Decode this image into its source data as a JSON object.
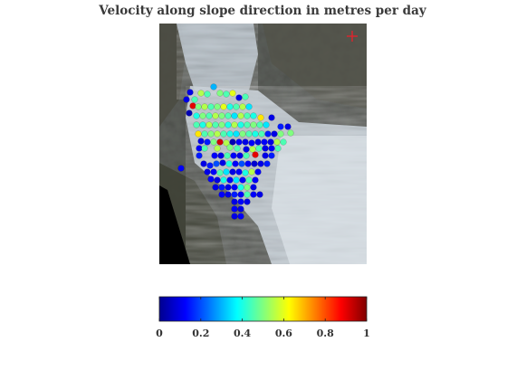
{
  "chart_data": {
    "type": "scatter",
    "title": "Velocity along slope direction in metres per day",
    "background": "satellite image of a glacier valley",
    "marker": {
      "symbol": "+",
      "color": "#e8202a"
    },
    "colormap": "jet",
    "colorbar": {
      "min": 0,
      "max": 1,
      "ticks": [
        "0",
        "0.2",
        "0.4",
        "0.6",
        "0.8",
        "1"
      ],
      "orientation": "horizontal",
      "position": "bottom"
    },
    "points": [
      {
        "x": 210,
        "y": 102,
        "v": 0.1
      },
      {
        "x": 215,
        "y": 110,
        "v": 0.45
      },
      {
        "x": 222,
        "y": 103,
        "v": 0.55
      },
      {
        "x": 229,
        "y": 104,
        "v": 0.45
      },
      {
        "x": 236,
        "y": 96,
        "v": 0.3
      },
      {
        "x": 243,
        "y": 103,
        "v": 0.5
      },
      {
        "x": 250,
        "y": 104,
        "v": 0.45
      },
      {
        "x": 257,
        "y": 103,
        "v": 0.6
      },
      {
        "x": 264,
        "y": 108,
        "v": 0.1
      },
      {
        "x": 271,
        "y": 107,
        "v": 0.45
      },
      {
        "x": 213,
        "y": 117,
        "v": 0.9
      },
      {
        "x": 206,
        "y": 110,
        "v": 0.1
      },
      {
        "x": 209,
        "y": 125,
        "v": 0.05
      },
      {
        "x": 219,
        "y": 118,
        "v": 0.5
      },
      {
        "x": 226,
        "y": 118,
        "v": 0.55
      },
      {
        "x": 233,
        "y": 118,
        "v": 0.45
      },
      {
        "x": 240,
        "y": 118,
        "v": 0.5
      },
      {
        "x": 247,
        "y": 118,
        "v": 0.6
      },
      {
        "x": 254,
        "y": 118,
        "v": 0.4
      },
      {
        "x": 261,
        "y": 118,
        "v": 0.45
      },
      {
        "x": 268,
        "y": 118,
        "v": 0.55
      },
      {
        "x": 275,
        "y": 118,
        "v": 0.35
      },
      {
        "x": 217,
        "y": 128,
        "v": 0.4
      },
      {
        "x": 224,
        "y": 128,
        "v": 0.5
      },
      {
        "x": 231,
        "y": 128,
        "v": 0.45
      },
      {
        "x": 238,
        "y": 128,
        "v": 0.55
      },
      {
        "x": 245,
        "y": 128,
        "v": 0.5
      },
      {
        "x": 252,
        "y": 128,
        "v": 0.45
      },
      {
        "x": 259,
        "y": 128,
        "v": 0.35
      },
      {
        "x": 266,
        "y": 128,
        "v": 0.55
      },
      {
        "x": 273,
        "y": 128,
        "v": 0.45
      },
      {
        "x": 280,
        "y": 128,
        "v": 0.4
      },
      {
        "x": 288,
        "y": 130,
        "v": 0.65
      },
      {
        "x": 217,
        "y": 138,
        "v": 0.45
      },
      {
        "x": 224,
        "y": 138,
        "v": 0.4
      },
      {
        "x": 231,
        "y": 138,
        "v": 0.55
      },
      {
        "x": 238,
        "y": 138,
        "v": 0.45
      },
      {
        "x": 245,
        "y": 138,
        "v": 0.5
      },
      {
        "x": 252,
        "y": 138,
        "v": 0.4
      },
      {
        "x": 259,
        "y": 138,
        "v": 0.55
      },
      {
        "x": 266,
        "y": 138,
        "v": 0.4
      },
      {
        "x": 273,
        "y": 138,
        "v": 0.45
      },
      {
        "x": 280,
        "y": 138,
        "v": 0.5
      },
      {
        "x": 287,
        "y": 138,
        "v": 0.45
      },
      {
        "x": 294,
        "y": 138,
        "v": 0.35
      },
      {
        "x": 300,
        "y": 130,
        "v": 0.1
      },
      {
        "x": 310,
        "y": 140,
        "v": 0.15
      },
      {
        "x": 318,
        "y": 140,
        "v": 0.1
      },
      {
        "x": 321,
        "y": 147,
        "v": 0.5
      },
      {
        "x": 219,
        "y": 148,
        "v": 0.65
      },
      {
        "x": 226,
        "y": 148,
        "v": 0.45
      },
      {
        "x": 233,
        "y": 148,
        "v": 0.5
      },
      {
        "x": 240,
        "y": 148,
        "v": 0.55
      },
      {
        "x": 247,
        "y": 148,
        "v": 0.45
      },
      {
        "x": 254,
        "y": 148,
        "v": 0.4
      },
      {
        "x": 261,
        "y": 148,
        "v": 0.35
      },
      {
        "x": 268,
        "y": 148,
        "v": 0.5
      },
      {
        "x": 275,
        "y": 148,
        "v": 0.45
      },
      {
        "x": 282,
        "y": 148,
        "v": 0.4
      },
      {
        "x": 289,
        "y": 148,
        "v": 0.45
      },
      {
        "x": 296,
        "y": 148,
        "v": 0.15
      },
      {
        "x": 303,
        "y": 148,
        "v": 0.1
      },
      {
        "x": 310,
        "y": 148,
        "v": 0.5
      },
      {
        "x": 222,
        "y": 156,
        "v": 0.1
      },
      {
        "x": 229,
        "y": 157,
        "v": 0.15
      },
      {
        "x": 236,
        "y": 157,
        "v": 0.5
      },
      {
        "x": 243,
        "y": 157,
        "v": 0.92
      },
      {
        "x": 250,
        "y": 158,
        "v": 0.55
      },
      {
        "x": 257,
        "y": 157,
        "v": 0.05
      },
      {
        "x": 264,
        "y": 157,
        "v": 0.12
      },
      {
        "x": 271,
        "y": 157,
        "v": 0.1
      },
      {
        "x": 278,
        "y": 158,
        "v": 0.12
      },
      {
        "x": 285,
        "y": 157,
        "v": 0.1
      },
      {
        "x": 292,
        "y": 157,
        "v": 0.12
      },
      {
        "x": 299,
        "y": 157,
        "v": 0.1
      },
      {
        "x": 306,
        "y": 157,
        "v": 0.55
      },
      {
        "x": 313,
        "y": 157,
        "v": 0.45
      },
      {
        "x": 220,
        "y": 164,
        "v": 0.12
      },
      {
        "x": 226,
        "y": 164,
        "v": 0.45
      },
      {
        "x": 240,
        "y": 164,
        "v": 0.55
      },
      {
        "x": 254,
        "y": 163,
        "v": 0.5
      },
      {
        "x": 262,
        "y": 164,
        "v": 0.45
      },
      {
        "x": 272,
        "y": 165,
        "v": 0.1
      },
      {
        "x": 279,
        "y": 165,
        "v": 0.55
      },
      {
        "x": 286,
        "y": 164,
        "v": 0.45
      },
      {
        "x": 293,
        "y": 164,
        "v": 0.1
      },
      {
        "x": 300,
        "y": 164,
        "v": 0.12
      },
      {
        "x": 307,
        "y": 164,
        "v": 0.45
      },
      {
        "x": 220,
        "y": 172,
        "v": 0.15
      },
      {
        "x": 237,
        "y": 172,
        "v": 0.12
      },
      {
        "x": 244,
        "y": 172,
        "v": 0.1
      },
      {
        "x": 251,
        "y": 172,
        "v": 0.45
      },
      {
        "x": 258,
        "y": 172,
        "v": 0.12
      },
      {
        "x": 265,
        "y": 172,
        "v": 0.1
      },
      {
        "x": 272,
        "y": 172,
        "v": 0.45
      },
      {
        "x": 282,
        "y": 171,
        "v": 0.9
      },
      {
        "x": 293,
        "y": 172,
        "v": 0.1
      },
      {
        "x": 300,
        "y": 172,
        "v": 0.15
      },
      {
        "x": 200,
        "y": 186,
        "v": 0.12
      },
      {
        "x": 225,
        "y": 181,
        "v": 0.1
      },
      {
        "x": 232,
        "y": 183,
        "v": 0.15
      },
      {
        "x": 239,
        "y": 181,
        "v": 0.2
      },
      {
        "x": 246,
        "y": 180,
        "v": 0.1
      },
      {
        "x": 253,
        "y": 181,
        "v": 0.4
      },
      {
        "x": 260,
        "y": 181,
        "v": 0.12
      },
      {
        "x": 267,
        "y": 181,
        "v": 0.2
      },
      {
        "x": 274,
        "y": 181,
        "v": 0.12
      },
      {
        "x": 281,
        "y": 181,
        "v": 0.08
      },
      {
        "x": 288,
        "y": 181,
        "v": 0.1
      },
      {
        "x": 295,
        "y": 181,
        "v": 0.15
      },
      {
        "x": 229,
        "y": 190,
        "v": 0.1
      },
      {
        "x": 236,
        "y": 190,
        "v": 0.12
      },
      {
        "x": 243,
        "y": 191,
        "v": 0.45
      },
      {
        "x": 250,
        "y": 190,
        "v": 0.35
      },
      {
        "x": 257,
        "y": 190,
        "v": 0.1
      },
      {
        "x": 264,
        "y": 190,
        "v": 0.12
      },
      {
        "x": 271,
        "y": 191,
        "v": 0.4
      },
      {
        "x": 278,
        "y": 190,
        "v": 0.55
      },
      {
        "x": 285,
        "y": 190,
        "v": 0.12
      },
      {
        "x": 233,
        "y": 198,
        "v": 0.12
      },
      {
        "x": 240,
        "y": 199,
        "v": 0.1
      },
      {
        "x": 247,
        "y": 199,
        "v": 0.4
      },
      {
        "x": 254,
        "y": 199,
        "v": 0.12
      },
      {
        "x": 261,
        "y": 199,
        "v": 0.35
      },
      {
        "x": 268,
        "y": 199,
        "v": 0.12
      },
      {
        "x": 275,
        "y": 199,
        "v": 0.45
      },
      {
        "x": 282,
        "y": 199,
        "v": 0.12
      },
      {
        "x": 238,
        "y": 207,
        "v": 0.1
      },
      {
        "x": 245,
        "y": 207,
        "v": 0.15
      },
      {
        "x": 252,
        "y": 207,
        "v": 0.1
      },
      {
        "x": 259,
        "y": 207,
        "v": 0.12
      },
      {
        "x": 266,
        "y": 207,
        "v": 0.4
      },
      {
        "x": 273,
        "y": 207,
        "v": 0.5
      },
      {
        "x": 280,
        "y": 207,
        "v": 0.1
      },
      {
        "x": 245,
        "y": 215,
        "v": 0.12
      },
      {
        "x": 252,
        "y": 215,
        "v": 0.1
      },
      {
        "x": 259,
        "y": 215,
        "v": 0.15
      },
      {
        "x": 266,
        "y": 215,
        "v": 0.12
      },
      {
        "x": 273,
        "y": 215,
        "v": 0.45
      },
      {
        "x": 280,
        "y": 215,
        "v": 0.12
      },
      {
        "x": 287,
        "y": 215,
        "v": 0.1
      },
      {
        "x": 259,
        "y": 223,
        "v": 0.1
      },
      {
        "x": 266,
        "y": 223,
        "v": 0.12
      },
      {
        "x": 273,
        "y": 223,
        "v": 0.1
      },
      {
        "x": 259,
        "y": 231,
        "v": 0.12
      },
      {
        "x": 266,
        "y": 231,
        "v": 0.1
      },
      {
        "x": 259,
        "y": 239,
        "v": 0.1
      },
      {
        "x": 266,
        "y": 239,
        "v": 0.12
      }
    ]
  }
}
